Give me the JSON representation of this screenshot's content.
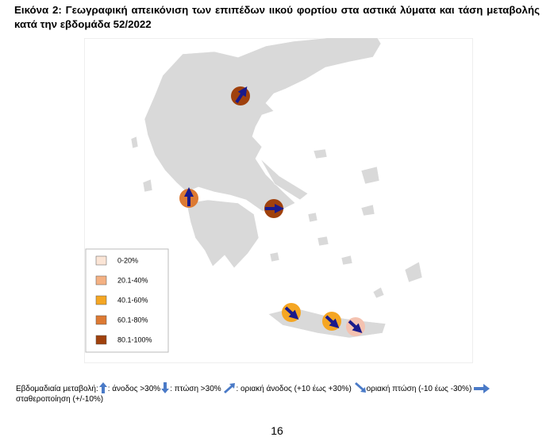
{
  "title": "Εικόνα 2: Γεωγραφική απεικόνιση των επιπέδων ιικού φορτίου στα αστικά λύματα και τάση μεταβολής κατά την εβδομάδα 52/2022",
  "legend": {
    "items": [
      "0-20%",
      "20.1-40%",
      "40.1-60%",
      "60.1-80%",
      "80.1-100%"
    ]
  },
  "caption": {
    "label": "Εβδομαδιαία μεταβολή:",
    "up": ": άνοδος >30%",
    "down": ": πτώση >30%",
    "slight_up": ": οριακή άνοδος (+10 έως +30%)",
    "slight_down": "οριακή πτώση (-10 έως -30%)",
    "stable": "σταθεροποίηση (+/-10%)"
  },
  "page_number": "16"
}
